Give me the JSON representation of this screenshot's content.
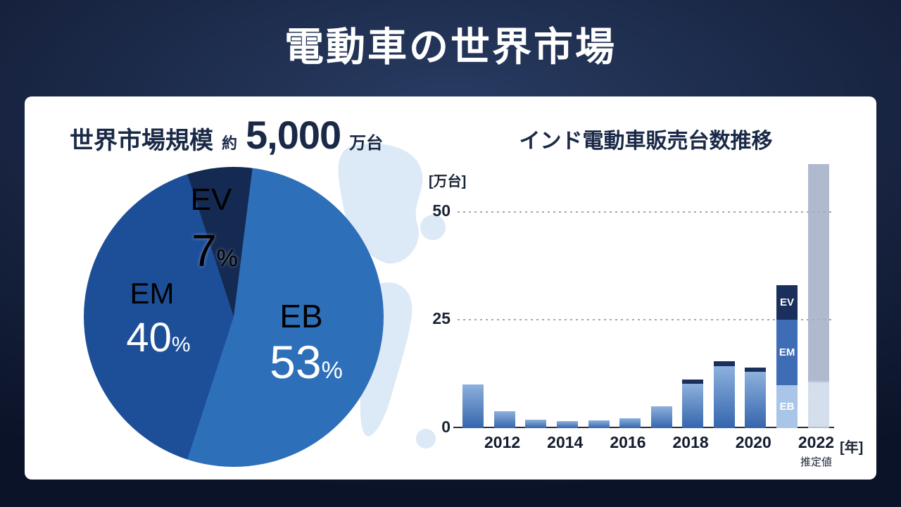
{
  "header": {
    "title": "電動車の世界市場"
  },
  "chart_data": [
    {
      "type": "pie",
      "title": "世界市場規模",
      "approx": "約",
      "total_value": "5,000",
      "total_unit": "万台",
      "start_angle": -18,
      "legend_position": "inside",
      "slices": [
        {
          "label": "EV",
          "value": 7,
          "unit": "%",
          "color": "#152a52"
        },
        {
          "label": "EB",
          "value": 53,
          "unit": "%",
          "color": "#2e6fba"
        },
        {
          "label": "EM",
          "value": 40,
          "unit": "%",
          "color": "#1d4f99"
        }
      ]
    },
    {
      "type": "bar",
      "title": "インド電動車販売台数推移",
      "ylabel": "[万台]",
      "xlabel": "[年]",
      "yticks": [
        0,
        25,
        50
      ],
      "ylim": [
        0,
        61
      ],
      "grid": "dotted-horizontal",
      "xtick_labels": [
        "2012",
        "2014",
        "2016",
        "2018",
        "2020",
        "2022"
      ],
      "colors": {
        "normal_top": "#8db1dd",
        "normal_bottom": "#3565ad",
        "dark": "#1b2f5c",
        "mid": "#3f6db5",
        "light": "#a9c6e8",
        "estimate_top": "#a2aec6",
        "estimate_bottom": "#ccd8e8"
      },
      "years": [
        {
          "year": "2011",
          "segments": [
            {
              "value": 10.1,
              "style": "normal"
            }
          ]
        },
        {
          "year": "2012",
          "segments": [
            {
              "value": 3.9,
              "style": "normal"
            }
          ]
        },
        {
          "year": "2013",
          "segments": [
            {
              "value": 2,
              "style": "normal"
            }
          ]
        },
        {
          "year": "2014",
          "segments": [
            {
              "value": 1.6,
              "style": "normal"
            }
          ]
        },
        {
          "year": "2015",
          "segments": [
            {
              "value": 1.8,
              "style": "normal"
            }
          ]
        },
        {
          "year": "2016",
          "segments": [
            {
              "value": 2.2,
              "style": "normal"
            }
          ]
        },
        {
          "year": "2017",
          "segments": [
            {
              "value": 5,
              "style": "normal"
            }
          ]
        },
        {
          "year": "2018",
          "segments": [
            {
              "value": 10.2,
              "style": "normal"
            },
            {
              "value": 1.1,
              "style": "dark"
            }
          ]
        },
        {
          "year": "2019",
          "segments": [
            {
              "value": 14.3,
              "style": "normal"
            },
            {
              "value": 1.1,
              "style": "dark"
            }
          ]
        },
        {
          "year": "2020",
          "segments": [
            {
              "value": 13,
              "style": "normal"
            },
            {
              "value": 1,
              "style": "dark"
            }
          ]
        },
        {
          "year": "2021",
          "segments": [
            {
              "value": 10,
              "style": "light",
              "label": "EB"
            },
            {
              "value": 15,
              "style": "mid",
              "label": "EM"
            },
            {
              "value": 8,
              "style": "dark",
              "label": "EV"
            }
          ]
        },
        {
          "year": "2022",
          "note": "推定値",
          "segments": [
            {
              "value": 61,
              "style": "estimate"
            }
          ]
        }
      ]
    }
  ]
}
